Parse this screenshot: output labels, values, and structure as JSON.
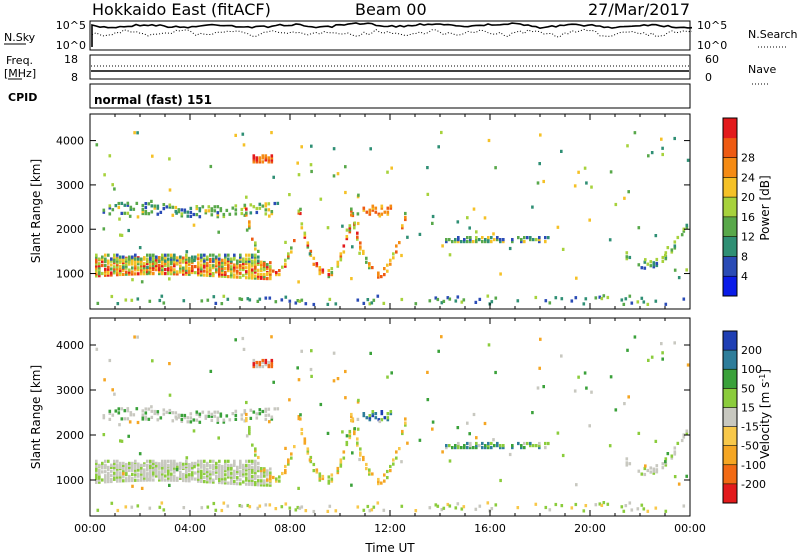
{
  "header": {
    "station": "Hokkaido East (fitACF)",
    "beam": "Beam 00",
    "date": "27/Mar/2017"
  },
  "noise_panel": {
    "left_label": "N.Sky",
    "right_label": "N.Search",
    "left_ticks": [
      "10^5",
      "10^0"
    ],
    "right_ticks": [
      "10^5",
      "10^0"
    ]
  },
  "freq_panel": {
    "left_label": "Freq.",
    "left_unit": "[MHz]",
    "right_label": "Nave",
    "left_ticks": [
      "18",
      "8"
    ],
    "right_ticks": [
      "60",
      "0"
    ]
  },
  "cpid_panel": {
    "label": "CPID",
    "text": "normal (fast) 151"
  },
  "colors": {
    "power": [
      "#0a1ce8",
      "#2a4bb6",
      "#2f8f74",
      "#58a84a",
      "#a7d23c",
      "#f5c127",
      "#f58b14",
      "#ee5a12",
      "#e31a1c"
    ],
    "velocity": [
      "#e31a1c",
      "#f26a14",
      "#f5a623",
      "#f8c84a",
      "#c8c8c0",
      "#8bcc3c",
      "#3aa13a",
      "#2e7d9a",
      "#1f3fb4"
    ]
  },
  "chart_data": [
    {
      "type": "heatmap",
      "panel": "power",
      "ylabel": "Slant Range [km]",
      "y_ticks": [
        1000,
        2000,
        3000,
        4000
      ],
      "ylim": [
        200,
        4600
      ],
      "colorbar_label": "Power [dB]",
      "colorbar_ticks": [
        "4",
        "8",
        "12",
        "16",
        "20",
        "24",
        "28"
      ],
      "colorbar_range": [
        0,
        32
      ],
      "x_ticks": [
        "00:00",
        "04:00",
        "08:00",
        "12:00",
        "16:00",
        "20:00",
        "00:00"
      ],
      "xlim_hours": [
        0,
        24
      ]
    },
    {
      "type": "heatmap",
      "panel": "velocity",
      "ylabel": "Slant Range [km]",
      "y_ticks": [
        1000,
        2000,
        3000,
        4000
      ],
      "ylim": [
        200,
        4600
      ],
      "colorbar_label": "Velocity [m s^-1]",
      "colorbar_ticks": [
        "-200",
        "-100",
        "-50",
        "-15",
        "15",
        "50",
        "100",
        "200"
      ],
      "x_ticks": [
        "00:00",
        "04:00",
        "08:00",
        "12:00",
        "16:00",
        "20:00",
        "00:00"
      ],
      "xlabel": "Time UT",
      "xlim_hours": [
        0,
        24
      ]
    }
  ]
}
